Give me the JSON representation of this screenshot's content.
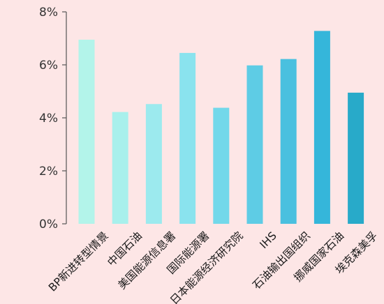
{
  "chart_data": {
    "type": "bar",
    "categories": [
      "BP新进转型情景",
      "中国石油",
      "美国能源信息署",
      "国际能源署",
      "日本能源经济研究院",
      "IHS",
      "石油输出国组织",
      "挪威国家石油",
      "埃克森美孚"
    ],
    "values": [
      6.95,
      4.22,
      4.52,
      6.45,
      4.38,
      5.98,
      6.22,
      7.28,
      4.95
    ],
    "ylim": [
      0,
      8
    ],
    "yticks": [
      0,
      2,
      4,
      6,
      8
    ],
    "yticklabels": [
      "0%",
      "2%",
      "4%",
      "6%",
      "8%"
    ],
    "grid": false,
    "highlight_category_index": 0,
    "colors": {
      "bars": [
        "#b3f4ea",
        "#a8f0ec",
        "#9ceaee",
        "#8ae3ee",
        "#73d8ea",
        "#5ecce5",
        "#4ac0df",
        "#35b6da",
        "#28aac9"
      ],
      "highlight_label": "#1f8fd6",
      "label": "#1a1a1a",
      "axis": "#555555",
      "background": "#fde6e6"
    }
  }
}
